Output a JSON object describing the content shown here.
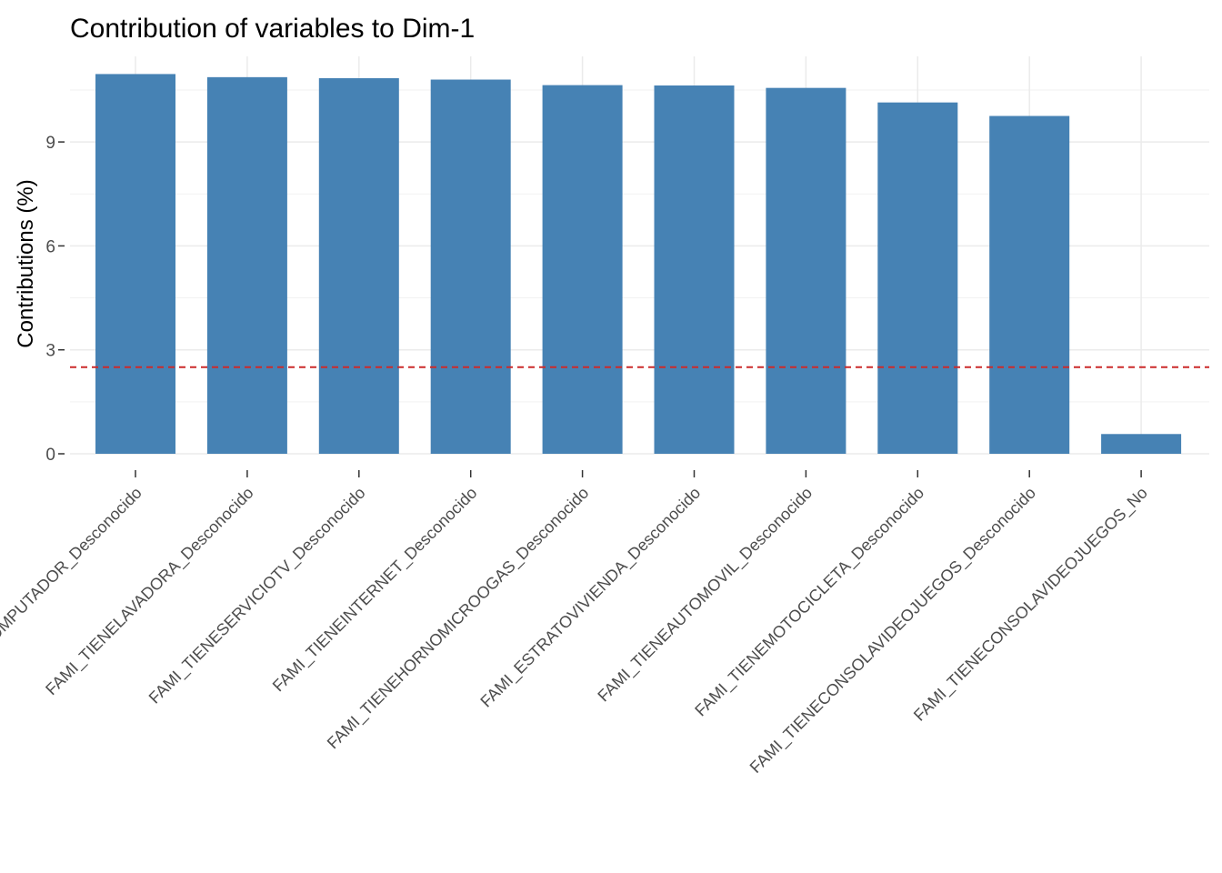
{
  "chart_data": {
    "type": "bar",
    "title": "Contribution of variables to Dim-1",
    "xlabel": "",
    "ylabel": "Contributions (%)",
    "categories": [
      "FAMI_TIENECOMPUTADOR_Desconocido",
      "FAMI_TIENELAVADORA_Desconocido",
      "FAMI_TIENESERVICIOTV_Desconocido",
      "FAMI_TIENEINTERNET_Desconocido",
      "FAMI_TIENEHORNOMICROOGAS_Desconocido",
      "FAMI_ESTRATOVIVIENDA_Desconocido",
      "FAMI_TIENEAUTOMOVIL_Desconocido",
      "FAMI_TIENEMOTOCICLETA_Desconocido",
      "FAMI_TIENECONSOLAVIDEOJUEGOS_Desconocido",
      "FAMI_TIENECONSOLAVIDEOJUEGOS_No"
    ],
    "values": [
      10.96,
      10.87,
      10.84,
      10.8,
      10.64,
      10.63,
      10.56,
      10.14,
      9.75,
      0.57
    ],
    "yticks": [
      0,
      3,
      6,
      9
    ],
    "ylim": [
      0,
      11.5
    ],
    "reference_line": {
      "value": 2.5,
      "style": "dashed",
      "color": "#cc2a2a"
    },
    "bar_color": "#4682b4",
    "grid": true
  }
}
